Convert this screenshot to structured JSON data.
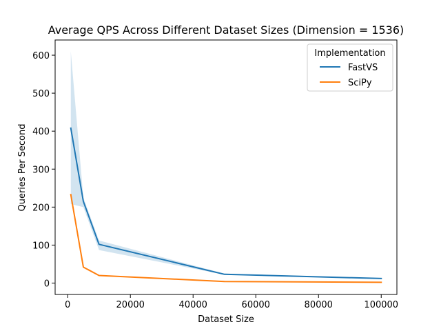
{
  "chart_data": {
    "type": "line",
    "title": "Average QPS Across Different Dataset Sizes (Dimension = 1536)",
    "xlabel": "Dataset Size",
    "ylabel": "Queries Per Second",
    "xlim": [
      -4000,
      105000
    ],
    "ylim": [
      -30,
      640
    ],
    "x_ticks": [
      0,
      20000,
      40000,
      60000,
      80000,
      100000
    ],
    "y_ticks": [
      0,
      100,
      200,
      300,
      400,
      500,
      600
    ],
    "grid": false,
    "legend": {
      "title": "Implementation",
      "placement": "top-right"
    },
    "series": [
      {
        "name": "FastVS",
        "color": "#1f77b4",
        "x": [
          1000,
          5000,
          10000,
          50000,
          100000
        ],
        "values": [
          408,
          215,
          102,
          23,
          12
        ],
        "ci_lower": [
          208,
          200,
          87,
          22,
          11
        ],
        "ci_upper": [
          610,
          225,
          112,
          25,
          13
        ]
      },
      {
        "name": "SciPy",
        "color": "#ff7f0e",
        "x": [
          1000,
          5000,
          10000,
          50000,
          100000
        ],
        "values": [
          233,
          42,
          20,
          4,
          2
        ]
      }
    ]
  }
}
